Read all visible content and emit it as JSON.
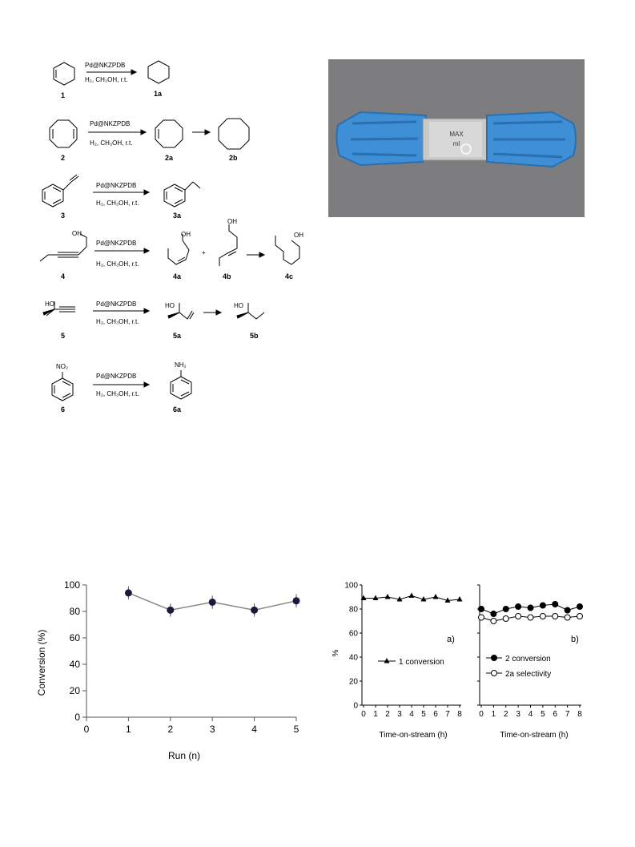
{
  "scheme": {
    "reactions": [
      {
        "reagent": "Pd@NKZPDB",
        "conditions": "H₂, CH₃OH, r.t.",
        "labels": [
          "1",
          "1a"
        ]
      },
      {
        "reagent": "Pd@NKZPDB",
        "conditions": "H₂, CH₃OH, r.t.",
        "labels": [
          "2",
          "2a",
          "2b"
        ]
      },
      {
        "reagent": "Pd@NKZPDB",
        "conditions": "H₂, CH₃OH, r.t.",
        "labels": [
          "3",
          "3a"
        ]
      },
      {
        "reagent": "Pd@NKZPDB",
        "conditions": "H₂, CH₃OH, r.t.",
        "labels": [
          "4",
          "4a",
          "4b",
          "4c"
        ]
      },
      {
        "reagent": "Pd@NKZPDB",
        "conditions": "H₂, CH₃OH, r.t.",
        "labels": [
          "5",
          "5a",
          "5b"
        ]
      },
      {
        "reagent": "Pd@NKZPDB",
        "conditions": "H₂, CH₃OH, r.t.",
        "labels": [
          "6",
          "6a"
        ]
      }
    ],
    "groups": {
      "oh": "OH",
      "ho": "HO",
      "no2": "NO₂",
      "nh2": "NH₂",
      "plus": "+"
    }
  },
  "photo": {
    "cap_text_left": "MAX",
    "cap_text_mid": "ml",
    "colors": {
      "background": "#7d7d7f",
      "cap": "#3e8fd6",
      "cap_dark": "#2a6fb0",
      "glass": "#c9c9c9"
    }
  },
  "chart_data": [
    {
      "type": "line",
      "title": "",
      "xlabel": "Run (n)",
      "ylabel": "Conversion (%)",
      "xlim": [
        0,
        5
      ],
      "ylim": [
        0,
        100
      ],
      "xticks": [
        0,
        1,
        2,
        3,
        4,
        5
      ],
      "yticks": [
        0,
        20,
        40,
        60,
        80,
        100
      ],
      "series": [
        {
          "x": [
            1,
            2,
            3,
            4,
            5
          ],
          "y": [
            94,
            81,
            87,
            81,
            88
          ],
          "error": [
            5,
            5,
            5,
            5,
            5
          ]
        }
      ]
    },
    {
      "type": "line",
      "title": "",
      "panel_label": "a)",
      "xlabel": "Time-on-stream (h)",
      "ylabel": "%",
      "xlim": [
        0,
        8
      ],
      "ylim": [
        0,
        100
      ],
      "xticks": [
        0,
        1,
        2,
        3,
        4,
        5,
        6,
        7,
        8
      ],
      "yticks": [
        0,
        20,
        40,
        60,
        80,
        100
      ],
      "series": [
        {
          "name": "1 conversion",
          "marker": "triangle",
          "x": [
            0,
            1,
            2,
            3,
            4,
            5,
            6,
            7,
            8
          ],
          "y": [
            89,
            89,
            90,
            88,
            91,
            88,
            90,
            87,
            88
          ]
        }
      ]
    },
    {
      "type": "line",
      "title": "",
      "panel_label": "b)",
      "xlabel": "Time-on-stream (h)",
      "ylabel": "",
      "xlim": [
        0,
        8
      ],
      "ylim": [
        0,
        100
      ],
      "xticks": [
        0,
        1,
        2,
        3,
        4,
        5,
        6,
        7,
        8
      ],
      "series": [
        {
          "name": "2 conversion",
          "marker": "filled-circle",
          "x": [
            0,
            1,
            2,
            3,
            4,
            5,
            6,
            7,
            8
          ],
          "y": [
            80,
            76,
            80,
            82,
            81,
            83,
            84,
            79,
            82
          ]
        },
        {
          "name": "2a selectivity",
          "marker": "open-circle",
          "x": [
            0,
            1,
            2,
            3,
            4,
            5,
            6,
            7,
            8
          ],
          "y": [
            73,
            70,
            72,
            74,
            73,
            74,
            74,
            73,
            74
          ]
        }
      ]
    }
  ]
}
